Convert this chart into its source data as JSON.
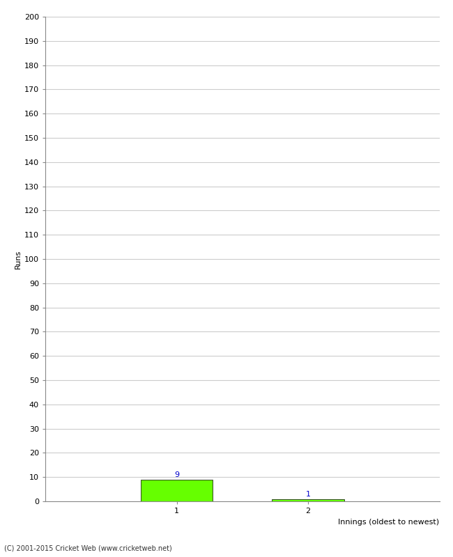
{
  "xlabel": "Innings (oldest to newest)",
  "ylabel": "Runs",
  "categories": [
    1,
    2
  ],
  "values": [
    9,
    1
  ],
  "bar_color": "#66ff00",
  "value_color": "#0000cc",
  "ylim": [
    0,
    200
  ],
  "xlim": [
    0,
    3
  ],
  "ytick_step": 10,
  "background_color": "#ffffff",
  "grid_color": "#cccccc",
  "footer": "(C) 2001-2015 Cricket Web (www.cricketweb.net)"
}
